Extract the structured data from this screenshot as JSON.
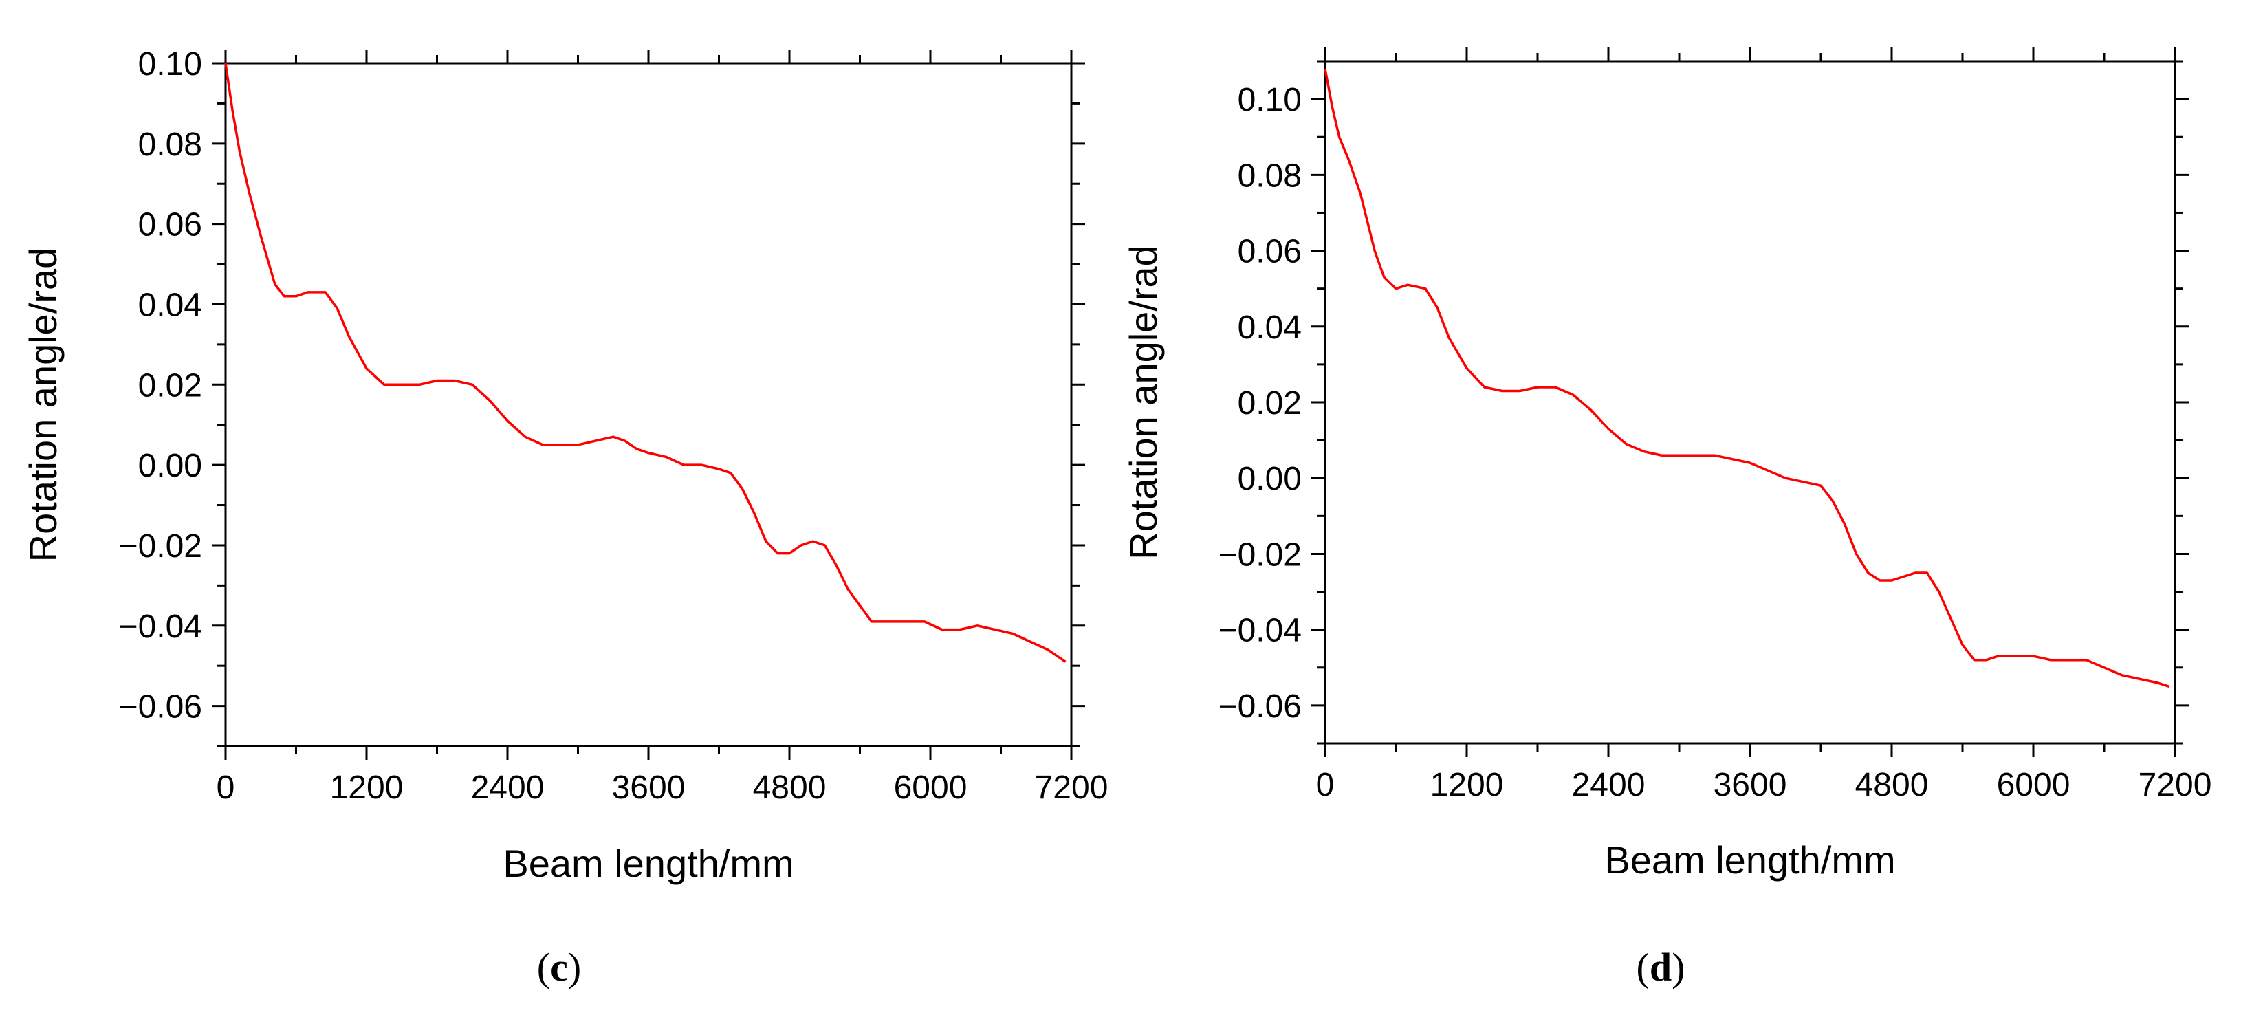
{
  "colors": {
    "line": "#ff0000",
    "axis": "#000000",
    "background": "#ffffff"
  },
  "chart_data": [
    {
      "id": "c",
      "type": "line",
      "panel_label": "c",
      "xlabel": "Beam length/mm",
      "ylabel": "Rotation angle/rad",
      "xlim": [
        0,
        7200
      ],
      "ylim": [
        -0.07,
        0.1
      ],
      "x_ticks": [
        0,
        1200,
        2400,
        3600,
        4800,
        6000,
        7200
      ],
      "x_tick_labels": [
        "0",
        "1200",
        "2400",
        "3600",
        "4800",
        "6000",
        "7200"
      ],
      "y_ticks": [
        -0.06,
        -0.04,
        -0.02,
        0.0,
        0.02,
        0.04,
        0.06,
        0.08,
        0.1
      ],
      "y_tick_labels": [
        "−0.06",
        "−0.04",
        "−0.02",
        "0.00",
        "0.02",
        "0.04",
        "0.06",
        "0.08",
        "0.10"
      ],
      "grid": false,
      "series": [
        {
          "name": "Rotation angle",
          "color": "#ff0000",
          "x": [
            0,
            60,
            120,
            200,
            300,
            420,
            500,
            600,
            700,
            850,
            950,
            1050,
            1200,
            1350,
            1500,
            1650,
            1800,
            1950,
            2100,
            2250,
            2400,
            2550,
            2700,
            2850,
            3000,
            3150,
            3300,
            3400,
            3500,
            3600,
            3750,
            3900,
            4050,
            4200,
            4300,
            4400,
            4500,
            4600,
            4700,
            4800,
            4900,
            5000,
            5100,
            5200,
            5300,
            5400,
            5500,
            5600,
            5700,
            5800,
            5950,
            6100,
            6250,
            6400,
            6550,
            6700,
            6850,
            7000,
            7150
          ],
          "y": [
            0.1,
            0.088,
            0.078,
            0.068,
            0.057,
            0.045,
            0.042,
            0.042,
            0.043,
            0.043,
            0.039,
            0.032,
            0.024,
            0.02,
            0.02,
            0.02,
            0.021,
            0.021,
            0.02,
            0.016,
            0.011,
            0.007,
            0.005,
            0.005,
            0.005,
            0.006,
            0.007,
            0.006,
            0.004,
            0.003,
            0.002,
            0.0,
            0.0,
            -0.001,
            -0.002,
            -0.006,
            -0.012,
            -0.019,
            -0.022,
            -0.022,
            -0.02,
            -0.019,
            -0.02,
            -0.025,
            -0.031,
            -0.035,
            -0.039,
            -0.039,
            -0.039,
            -0.039,
            -0.039,
            -0.041,
            -0.041,
            -0.04,
            -0.041,
            -0.042,
            -0.044,
            -0.046,
            -0.049
          ]
        }
      ]
    },
    {
      "id": "d",
      "type": "line",
      "panel_label": "d",
      "xlabel": "Beam length/mm",
      "ylabel": "Rotation angle/rad",
      "xlim": [
        0,
        7200
      ],
      "ylim": [
        -0.07,
        0.11
      ],
      "x_ticks": [
        0,
        1200,
        2400,
        3600,
        4800,
        6000,
        7200
      ],
      "x_tick_labels": [
        "0",
        "1200",
        "2400",
        "3600",
        "4800",
        "6000",
        "7200"
      ],
      "y_ticks": [
        -0.06,
        -0.04,
        -0.02,
        0.0,
        0.02,
        0.04,
        0.06,
        0.08,
        0.1
      ],
      "y_tick_labels": [
        "−0.06",
        "−0.04",
        "−0.02",
        "0.00",
        "0.02",
        "0.04",
        "0.06",
        "0.08",
        "0.10"
      ],
      "grid": false,
      "series": [
        {
          "name": "Rotation angle",
          "color": "#ff0000",
          "x": [
            0,
            60,
            120,
            200,
            300,
            420,
            500,
            600,
            700,
            850,
            950,
            1050,
            1200,
            1350,
            1500,
            1650,
            1800,
            1950,
            2100,
            2250,
            2400,
            2550,
            2700,
            2850,
            3000,
            3150,
            3300,
            3450,
            3600,
            3750,
            3900,
            4050,
            4200,
            4300,
            4400,
            4500,
            4600,
            4700,
            4800,
            4900,
            5000,
            5100,
            5200,
            5300,
            5400,
            5500,
            5600,
            5700,
            5850,
            6000,
            6150,
            6300,
            6450,
            6600,
            6750,
            6900,
            7050,
            7150
          ],
          "y": [
            0.108,
            0.098,
            0.09,
            0.084,
            0.075,
            0.06,
            0.053,
            0.05,
            0.051,
            0.05,
            0.045,
            0.037,
            0.029,
            0.024,
            0.023,
            0.023,
            0.024,
            0.024,
            0.022,
            0.018,
            0.013,
            0.009,
            0.007,
            0.006,
            0.006,
            0.006,
            0.006,
            0.005,
            0.004,
            0.002,
            0.0,
            -0.001,
            -0.002,
            -0.006,
            -0.012,
            -0.02,
            -0.025,
            -0.027,
            -0.027,
            -0.026,
            -0.025,
            -0.025,
            -0.03,
            -0.037,
            -0.044,
            -0.048,
            -0.048,
            -0.047,
            -0.047,
            -0.047,
            -0.048,
            -0.048,
            -0.048,
            -0.05,
            -0.052,
            -0.053,
            -0.054,
            -0.055
          ]
        }
      ]
    }
  ]
}
